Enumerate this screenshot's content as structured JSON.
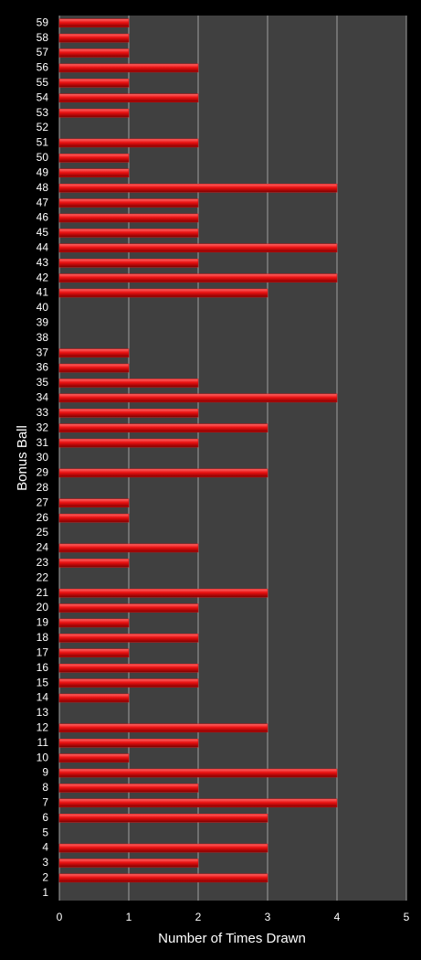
{
  "chart_data": {
    "type": "bar",
    "orientation": "horizontal",
    "x_label": "Number of Times Drawn",
    "y_label": "Bonus Ball",
    "categories": [
      "1",
      "2",
      "3",
      "4",
      "5",
      "6",
      "7",
      "8",
      "9",
      "10",
      "11",
      "12",
      "13",
      "14",
      "15",
      "16",
      "17",
      "18",
      "19",
      "20",
      "21",
      "22",
      "23",
      "24",
      "25",
      "26",
      "27",
      "28",
      "29",
      "30",
      "31",
      "32",
      "33",
      "34",
      "35",
      "36",
      "37",
      "38",
      "39",
      "40",
      "41",
      "42",
      "43",
      "44",
      "45",
      "46",
      "47",
      "48",
      "49",
      "50",
      "51",
      "52",
      "53",
      "54",
      "55",
      "56",
      "57",
      "58",
      "59"
    ],
    "values": [
      0,
      3,
      2,
      3,
      0,
      3,
      4,
      2,
      4,
      1,
      2,
      3,
      0,
      1,
      2,
      2,
      1,
      2,
      1,
      2,
      3,
      0,
      1,
      2,
      0,
      1,
      1,
      0,
      3,
      0,
      2,
      3,
      2,
      4,
      2,
      1,
      1,
      0,
      0,
      0,
      3,
      4,
      2,
      4,
      2,
      2,
      2,
      4,
      1,
      1,
      2,
      0,
      1,
      2,
      1,
      2,
      1,
      1,
      1
    ],
    "color": "#e01010",
    "xlim": [
      0,
      5
    ],
    "xticks": [
      0,
      1,
      2,
      3,
      4,
      5
    ],
    "grid": true
  }
}
